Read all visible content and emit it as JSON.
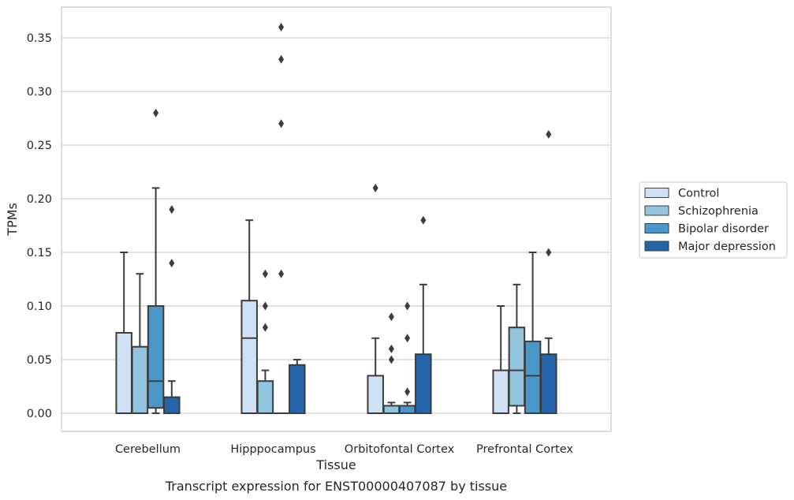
{
  "caption": "Transcript expression for ENST00000407087 by tissue",
  "chart_data": {
    "type": "box",
    "title": "",
    "xlabel": "Tissue",
    "ylabel": "TPMs",
    "ylim": [
      -0.017,
      0.379
    ],
    "yticks": [
      0.0,
      0.05,
      0.1,
      0.15,
      0.2,
      0.25,
      0.3,
      0.35
    ],
    "ytick_labels": [
      "0.00",
      "0.05",
      "0.10",
      "0.15",
      "0.20",
      "0.25",
      "0.30",
      "0.35"
    ],
    "grid": "horizontal",
    "legend_position": "right",
    "categories": [
      "Cerebellum",
      "Hipppocampus",
      "Orbitofontal Cortex",
      "Prefrontal Cortex"
    ],
    "series": [
      {
        "name": "Control",
        "color": "#cfe1f2",
        "boxes": [
          {
            "whisker_low": 0.0,
            "q1": 0.0,
            "median": 0.0,
            "q3": 0.075,
            "whisker_high": 0.15,
            "outliers": []
          },
          {
            "whisker_low": 0.0,
            "q1": 0.0,
            "median": 0.07,
            "q3": 0.105,
            "whisker_high": 0.18,
            "outliers": []
          },
          {
            "whisker_low": 0.0,
            "q1": 0.0,
            "median": 0.0,
            "q3": 0.035,
            "whisker_high": 0.07,
            "outliers": [
              0.21
            ]
          },
          {
            "whisker_low": 0.0,
            "q1": 0.0,
            "median": 0.0,
            "q3": 0.04,
            "whisker_high": 0.1,
            "outliers": []
          }
        ]
      },
      {
        "name": "Schizophrenia",
        "color": "#93c4de",
        "boxes": [
          {
            "whisker_low": 0.0,
            "q1": 0.0,
            "median": 0.0,
            "q3": 0.062,
            "whisker_high": 0.13,
            "outliers": []
          },
          {
            "whisker_low": 0.0,
            "q1": 0.0,
            "median": 0.0,
            "q3": 0.03,
            "whisker_high": 0.04,
            "outliers": [
              0.08,
              0.1,
              0.13
            ]
          },
          {
            "whisker_low": 0.0,
            "q1": 0.0,
            "median": 0.0,
            "q3": 0.007,
            "whisker_high": 0.01,
            "outliers": [
              0.05,
              0.06,
              0.09
            ]
          },
          {
            "whisker_low": 0.0,
            "q1": 0.007,
            "median": 0.04,
            "q3": 0.08,
            "whisker_high": 0.12,
            "outliers": []
          }
        ]
      },
      {
        "name": "Bipolar disorder",
        "color": "#4a98c9",
        "boxes": [
          {
            "whisker_low": 0.0,
            "q1": 0.005,
            "median": 0.03,
            "q3": 0.1,
            "whisker_high": 0.21,
            "outliers": [
              0.28
            ]
          },
          {
            "whisker_low": 0.0,
            "q1": 0.0,
            "median": 0.0,
            "q3": 0.0,
            "whisker_high": 0.0,
            "outliers": [
              0.13,
              0.27,
              0.33,
              0.36
            ]
          },
          {
            "whisker_low": 0.0,
            "q1": 0.0,
            "median": 0.0,
            "q3": 0.007,
            "whisker_high": 0.01,
            "outliers": [
              0.02,
              0.07,
              0.1
            ]
          },
          {
            "whisker_low": 0.0,
            "q1": 0.0,
            "median": 0.035,
            "q3": 0.067,
            "whisker_high": 0.15,
            "outliers": []
          }
        ]
      },
      {
        "name": "Major depression",
        "color": "#2464a9",
        "boxes": [
          {
            "whisker_low": 0.0,
            "q1": 0.0,
            "median": 0.0,
            "q3": 0.015,
            "whisker_high": 0.03,
            "outliers": [
              0.14,
              0.19
            ]
          },
          {
            "whisker_low": 0.0,
            "q1": 0.0,
            "median": 0.0,
            "q3": 0.045,
            "whisker_high": 0.05,
            "outliers": []
          },
          {
            "whisker_low": 0.0,
            "q1": 0.0,
            "median": 0.0,
            "q3": 0.055,
            "whisker_high": 0.12,
            "outliers": [
              0.18
            ]
          },
          {
            "whisker_low": 0.0,
            "q1": 0.0,
            "median": 0.0,
            "q3": 0.055,
            "whisker_high": 0.07,
            "outliers": [
              0.15,
              0.26
            ]
          }
        ]
      }
    ]
  }
}
